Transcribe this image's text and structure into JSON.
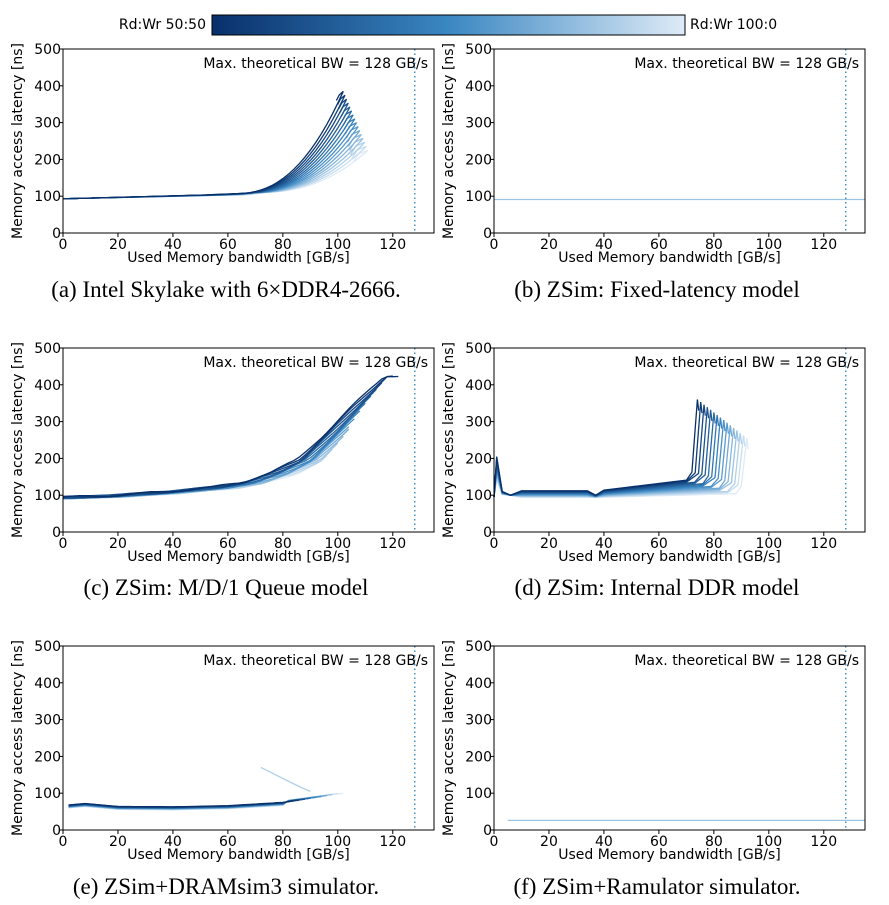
{
  "colorbar": {
    "left_label": "Rd:Wr 50:50",
    "right_label": "Rd:Wr 100:0",
    "dark_color": "#08306b",
    "light_color": "#deebf7"
  },
  "annotation": "Max. theoretical BW = 128 GB/s",
  "chart_data": [
    {
      "type": "line",
      "caption": "(a) Intel Skylake with 6×DDR4-2666.",
      "xlabel": "Used Memory bandwidth [GB/s]",
      "ylabel": "Memory access latency [ns]",
      "xlim": [
        0,
        135
      ],
      "ylim": [
        0,
        500
      ],
      "xticks": [
        "0",
        "20",
        "40",
        "60",
        "80",
        "100",
        "120"
      ],
      "yticks": [
        "0",
        "100",
        "200",
        "300",
        "400",
        "500"
      ],
      "max_bw_line": 128,
      "series_count": 16,
      "series_shape": "knee",
      "base_x": [
        0,
        10,
        20,
        30,
        40,
        50,
        60,
        70,
        80,
        90,
        100
      ],
      "base_y": [
        93,
        95,
        97,
        99,
        101,
        103,
        106,
        110,
        125,
        165,
        280
      ],
      "end_x_range": [
        102,
        111
      ],
      "end_y_range": [
        385,
        225
      ]
    },
    {
      "type": "line",
      "caption": "(b) ZSim: Fixed-latency model",
      "xlabel": "Used Memory bandwidth [GB/s]",
      "ylabel": "Memory access latency [ns]",
      "xlim": [
        0,
        135
      ],
      "ylim": [
        0,
        500
      ],
      "xticks": [
        "0",
        "20",
        "40",
        "60",
        "80",
        "100",
        "120"
      ],
      "yticks": [
        "0",
        "100",
        "200",
        "300",
        "400",
        "500"
      ],
      "max_bw_line": 128,
      "series_count": 1,
      "series_shape": "flat",
      "flat_y": 91,
      "x_range": [
        0,
        135
      ]
    },
    {
      "type": "line",
      "caption": "(c) ZSim: M/D/1 Queue model",
      "xlabel": "Used Memory bandwidth [GB/s]",
      "ylabel": "Memory access latency [ns]",
      "xlim": [
        0,
        135
      ],
      "ylim": [
        0,
        500
      ],
      "xticks": [
        "0",
        "20",
        "40",
        "60",
        "80",
        "100",
        "120"
      ],
      "yticks": [
        "0",
        "100",
        "200",
        "300",
        "400",
        "500"
      ],
      "max_bw_line": 128,
      "series_count": 16,
      "series_shape": "queue",
      "base_x": [
        0,
        20,
        40,
        60,
        70,
        80,
        90,
        100,
        110,
        122
      ],
      "base_y": [
        93,
        98,
        108,
        122,
        135,
        160,
        195,
        265,
        340,
        425
      ]
    },
    {
      "type": "line",
      "caption": "(d) ZSim: Internal DDR model",
      "xlabel": "Used Memory bandwidth [GB/s]",
      "ylabel": "Memory access latency [ns]",
      "xlim": [
        0,
        135
      ],
      "ylim": [
        0,
        500
      ],
      "xticks": [
        "0",
        "20",
        "40",
        "60",
        "80",
        "100",
        "120"
      ],
      "yticks": [
        "0",
        "100",
        "200",
        "300",
        "400",
        "500"
      ],
      "max_bw_line": 128,
      "series_count": 16,
      "series_shape": "ddr",
      "peak_y": 205,
      "end_x_range": [
        74,
        92
      ],
      "end_y_range": [
        360,
        255
      ]
    },
    {
      "type": "line",
      "caption": "(e) ZSim+DRAMsim3 simulator.",
      "xlabel": "Used Memory bandwidth [GB/s]",
      "ylabel": "Memory access latency [ns]",
      "xlim": [
        0,
        135
      ],
      "ylim": [
        0,
        500
      ],
      "xticks": [
        "0",
        "20",
        "40",
        "60",
        "80",
        "100",
        "120"
      ],
      "yticks": [
        "0",
        "100",
        "200",
        "300",
        "400",
        "500"
      ],
      "max_bw_line": 128,
      "series_count": 16,
      "series_shape": "dramsim",
      "base_x": [
        2,
        8,
        20,
        40,
        60,
        80,
        90,
        100
      ],
      "base_y": [
        68,
        72,
        64,
        63,
        66,
        75,
        85,
        95
      ]
    },
    {
      "type": "line",
      "caption": "(f) ZSim+Ramulator simulator.",
      "xlabel": "Used Memory bandwidth [GB/s]",
      "ylabel": "Memory access latency [ns]",
      "xlim": [
        0,
        135
      ],
      "ylim": [
        0,
        500
      ],
      "xticks": [
        "0",
        "20",
        "40",
        "60",
        "80",
        "100",
        "120"
      ],
      "yticks": [
        "0",
        "100",
        "200",
        "300",
        "400",
        "500"
      ],
      "max_bw_line": 128,
      "series_count": 1,
      "series_shape": "flat",
      "flat_y": 26,
      "x_range": [
        5,
        135
      ]
    }
  ]
}
